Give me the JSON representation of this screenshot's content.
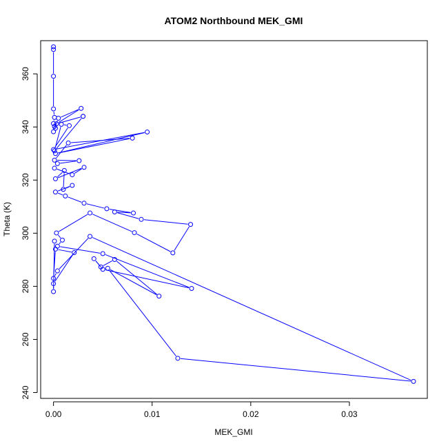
{
  "chart_data": {
    "type": "line",
    "title": "ATOM2 Northbound MEK_GMI",
    "xlabel": "MEK_GMI",
    "ylabel": "Theta (K)",
    "xlim": [
      -0.0013,
      0.0379
    ],
    "ylim": [
      237.8,
      372.5
    ],
    "x_ticks": [
      0.0,
      0.01,
      0.02,
      0.03
    ],
    "x_tick_labels": [
      "0.00",
      "0.01",
      "0.02",
      "0.03"
    ],
    "y_ticks": [
      240,
      260,
      280,
      300,
      320,
      340,
      360
    ],
    "y_tick_labels": [
      "240",
      "260",
      "280",
      "300",
      "320",
      "340",
      "360"
    ],
    "grid": false,
    "legend": "none",
    "series": [
      {
        "color": "#0000ff",
        "marker": "open-circle",
        "x": [
          0.0,
          0.0,
          0.0,
          0.0,
          0.0001,
          0.0,
          0.0001,
          0.0002,
          0.0,
          0.0005,
          0.0028,
          0.0003,
          0.003,
          0.003,
          0.0001,
          0.0008,
          0.0016,
          0.0,
          0.0095,
          0.0002,
          0.008,
          0.0015,
          0.0001,
          0.0026,
          0.0004,
          0.0001,
          0.0019,
          0.0031,
          0.0002,
          0.0011,
          0.001,
          0.0019,
          0.0002,
          0.0012,
          0.0031,
          0.0054,
          0.0081,
          0.0062,
          0.0089,
          0.0139,
          0.0121,
          0.0082,
          0.0037,
          0.0003,
          0.0009,
          0.0004,
          0.005,
          0.014,
          0.005,
          0.0041,
          0.0048,
          0.0062,
          0.0107,
          0.0055,
          0.0126,
          0.0365,
          0.0037,
          0.0004,
          0.0,
          0.0002,
          0.0021,
          0.0,
          0.0,
          0.0001
        ],
        "y": [
          370.2,
          369.2,
          359.1,
          346.8,
          343.6,
          341.3,
          340.2,
          339.5,
          338.2,
          343.3,
          347.0,
          341.2,
          344.0,
          344.0,
          331.0,
          341.0,
          340.5,
          331.5,
          338.1,
          330.0,
          335.8,
          334.0,
          327.5,
          327.3,
          326.2,
          324.5,
          322.0,
          324.8,
          320.5,
          323.6,
          316.5,
          318.0,
          315.5,
          314.0,
          311.3,
          309.2,
          307.6,
          308.0,
          305.2,
          303.3,
          292.6,
          300.2,
          307.6,
          300.1,
          297.4,
          295.1,
          292.3,
          279.2,
          286.4,
          290.4,
          287.3,
          290.1,
          276.3,
          286.8,
          252.9,
          244.2,
          298.8,
          285.8,
          283.0,
          294.0,
          292.7,
          281.0,
          278.0,
          297.0
        ]
      }
    ]
  }
}
